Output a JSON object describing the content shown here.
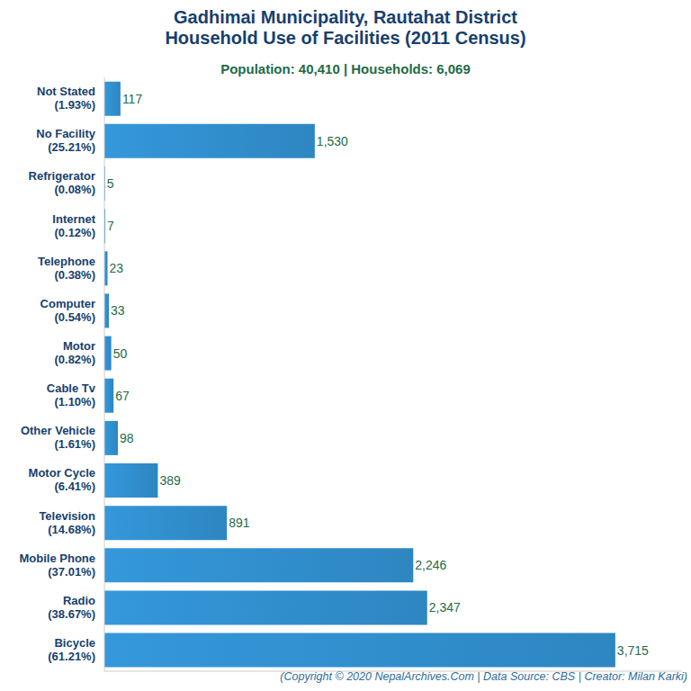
{
  "chart_data": {
    "type": "bar",
    "orientation": "horizontal",
    "title": "Gadhimai Municipality, Rautahat District\nHousehold Use of Facilities (2011 Census)",
    "subtitle": "Population: 40,410 | Households: 6,069",
    "source": "(Copyright © 2020 NepalArchives.Com | Data Source: CBS | Creator: Milan Karki)",
    "categories": [
      "Not Stated\n(1.93%)",
      "No Facility\n(25.21%)",
      "Refrigerator\n(0.08%)",
      "Internet\n(0.12%)",
      "Telephone\n(0.38%)",
      "Computer\n(0.54%)",
      "Motor\n(0.82%)",
      "Cable Tv\n(1.10%)",
      "Other Vehicle\n(1.61%)",
      "Motor Cycle\n(6.41%)",
      "Television\n(14.68%)",
      "Mobile Phone\n(37.01%)",
      "Radio\n(38.67%)",
      "Bicycle\n(61.21%)"
    ],
    "values": [
      117,
      1530,
      5,
      7,
      23,
      33,
      50,
      67,
      98,
      389,
      891,
      2246,
      2347,
      3715
    ],
    "value_labels": [
      "117",
      "1,530",
      "5",
      "7",
      "23",
      "33",
      "50",
      "67",
      "98",
      "389",
      "891",
      "2,246",
      "2,347",
      "3,715"
    ],
    "color": "#2e86c1",
    "xlim": [
      0,
      4200
    ],
    "xticks": [],
    "data_labels": true,
    "tick_labels": "y",
    "grid": false
  }
}
